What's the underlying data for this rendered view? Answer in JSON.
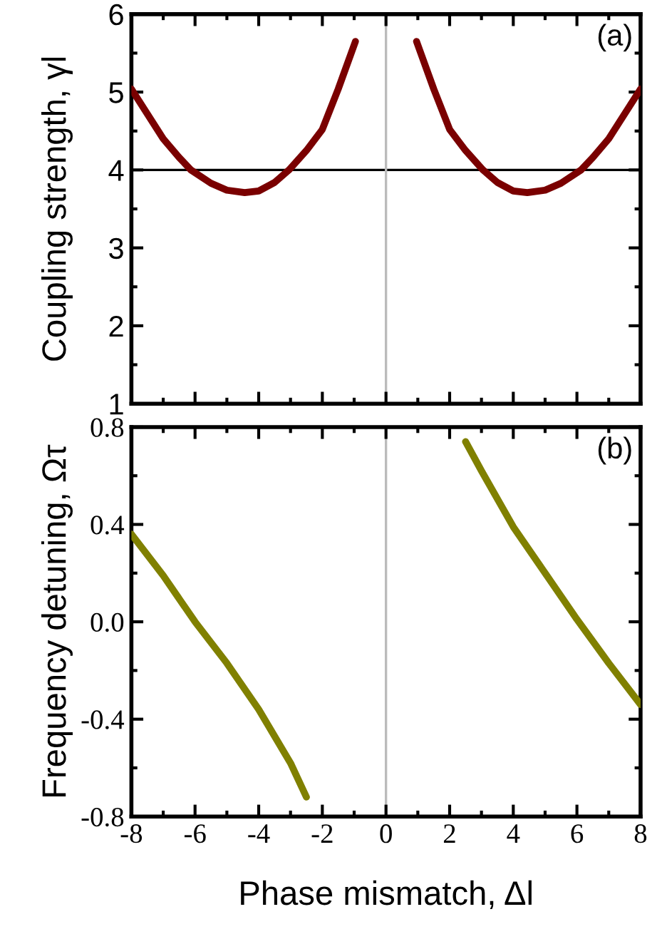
{
  "chart_data": [
    {
      "type": "line",
      "ylabel": "Coupling strength, γl",
      "annotations": [
        "(a)"
      ],
      "tick_labels": "y",
      "xlim": [
        -8,
        8
      ],
      "xticks": [
        -8,
        -6,
        -4,
        -2,
        0,
        2,
        4,
        6,
        8
      ],
      "ylim": [
        1,
        6
      ],
      "yticks": [
        1,
        2,
        3,
        4,
        5,
        6
      ],
      "ref_lines": [
        {
          "axis": "y",
          "value": 4,
          "color": "#000000"
        },
        {
          "axis": "x",
          "value": 0,
          "color": "#bbbbbb"
        }
      ],
      "series": [
        {
          "color": "#7a0000",
          "x": [
            -8,
            -7,
            -6.5,
            -6.13,
            -5.5,
            -5,
            -4.44,
            -4,
            -3.5,
            -3.05,
            -2.5,
            -2,
            -1.5,
            -0.96
          ],
          "values": [
            5.04,
            4.4,
            4.16,
            4.0,
            3.83,
            3.74,
            3.71,
            3.73,
            3.84,
            4.0,
            4.25,
            4.52,
            5.04,
            5.65
          ]
        },
        {
          "color": "#7a0000",
          "x": [
            0.96,
            1.5,
            2,
            2.5,
            3.05,
            3.5,
            4,
            4.44,
            5,
            5.5,
            6.13,
            6.5,
            7,
            8
          ],
          "values": [
            5.65,
            5.04,
            4.52,
            4.25,
            4.0,
            3.84,
            3.73,
            3.71,
            3.74,
            3.83,
            4.0,
            4.16,
            4.4,
            5.04
          ]
        }
      ]
    },
    {
      "type": "line",
      "ylabel": "Frequency detuning, Ωτ",
      "xlabel": "Phase mismatch, Δl",
      "annotations": [
        "(b)"
      ],
      "xlim": [
        -8,
        8
      ],
      "xticks": [
        {
          "value": -8,
          "label": "-8"
        },
        {
          "value": -6,
          "label": "-6"
        },
        {
          "value": -4,
          "label": "-4"
        },
        {
          "value": -2,
          "label": "-2"
        },
        0,
        2,
        4,
        6,
        8
      ],
      "ylim": [
        -0.8,
        0.8
      ],
      "yticks": [
        {
          "value": -0.8,
          "label": "-0.8"
        },
        {
          "value": -0.4,
          "label": "-0.4"
        },
        {
          "value": 0,
          "label": "0.0"
        },
        0.4,
        0.8
      ],
      "ref_lines": [
        {
          "axis": "x",
          "value": 0,
          "color": "#bbbbbb"
        }
      ],
      "series": [
        {
          "color": "#808000",
          "x": [
            -8,
            -7,
            -6,
            -5,
            -4,
            -3,
            -2.5
          ],
          "values": [
            0.36,
            0.19,
            0.0,
            -0.17,
            -0.36,
            -0.58,
            -0.72
          ]
        },
        {
          "color": "#808000",
          "x": [
            2.5,
            3,
            4,
            5,
            6,
            7,
            8
          ],
          "values": [
            0.74,
            0.62,
            0.39,
            0.2,
            0.01,
            -0.17,
            -0.34
          ]
        }
      ]
    }
  ]
}
